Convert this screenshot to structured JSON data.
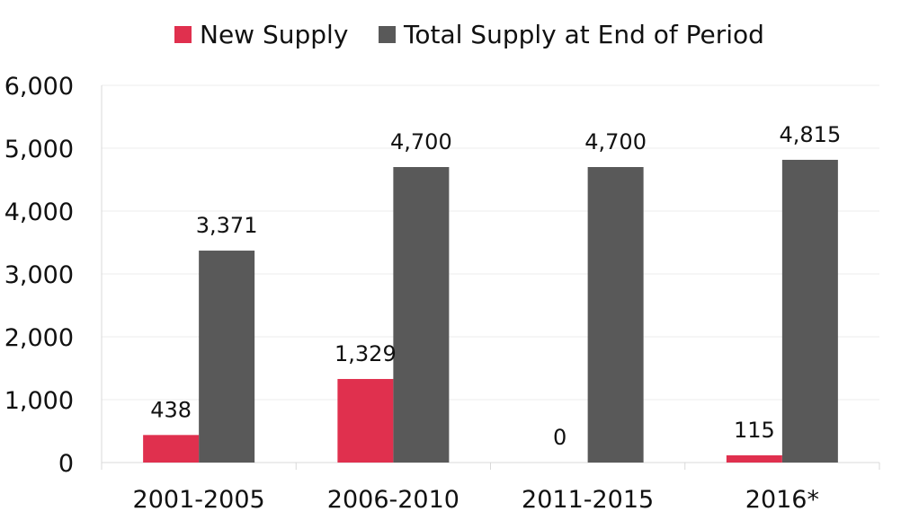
{
  "chart_data": {
    "type": "bar",
    "title": "",
    "xlabel": "",
    "ylabel": "",
    "categories": [
      "2001-2005",
      "2006-2010",
      "2011-2015",
      "2016*"
    ],
    "series": [
      {
        "name": "New Supply",
        "color": "#e0304e",
        "values": [
          438,
          1329,
          0,
          115
        ],
        "labels": [
          "438",
          "1,329",
          "0",
          "115"
        ]
      },
      {
        "name": "Total Supply at End of Period",
        "color": "#595959",
        "values": [
          3371,
          4700,
          4700,
          4815
        ],
        "labels": [
          "3,371",
          "4,700",
          "4,700",
          "4,815"
        ]
      }
    ],
    "ylim": [
      0,
      6000
    ],
    "yticks": [
      0,
      1000,
      2000,
      3000,
      4000,
      5000,
      6000
    ],
    "ytick_labels": [
      "0",
      "1,000",
      "2,000",
      "3,000",
      "4,000",
      "5,000",
      "6,000"
    ],
    "grid": true,
    "legend_position": "top-center"
  }
}
